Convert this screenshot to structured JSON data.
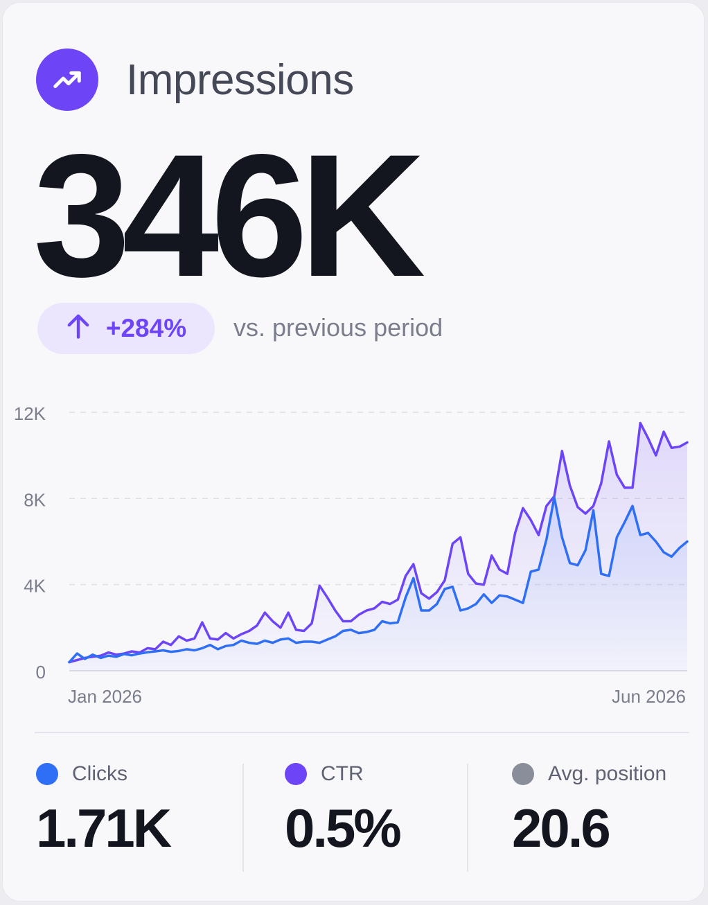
{
  "card": {
    "title": "Impressions",
    "title_icon": "trending-up-icon",
    "value": "346K",
    "change": "+284%",
    "change_icon": "arrow-up-icon",
    "comparison": "vs. previous period",
    "colors": {
      "accent": "#6d45f6",
      "clicks": "#2f6ff5",
      "impressions": "#6d45f6",
      "position": "#8a8d9a"
    }
  },
  "metrics": [
    {
      "label": "Clicks",
      "value": "1.71K",
      "color": "#2f6ff5"
    },
    {
      "label": "CTR",
      "value": "0.5%",
      "color": "#6d45f6"
    },
    {
      "label": "Avg. position",
      "value": "20.6",
      "color": "#8a8d9a"
    }
  ],
  "chart_data": {
    "type": "area",
    "x_start_label": "Jan 2026",
    "x_end_label": "Jun 2026",
    "ylim": [
      0,
      12000
    ],
    "yticks": [
      0,
      4000,
      8000,
      12000
    ],
    "ytick_labels": [
      "0",
      "4K",
      "8K",
      "12K"
    ],
    "grid": true,
    "series": [
      {
        "color": "#6d45f6",
        "values": [
          400,
          500,
          600,
          650,
          700,
          850,
          750,
          800,
          900,
          850,
          1050,
          1000,
          1350,
          1200,
          1600,
          1400,
          1500,
          2250,
          1500,
          1450,
          1750,
          1500,
          1700,
          1850,
          2100,
          2700,
          2300,
          2000,
          2700,
          1900,
          1850,
          2200,
          3950,
          3400,
          2800,
          2300,
          2300,
          2600,
          2800,
          2900,
          3200,
          3100,
          3300,
          4400,
          4950,
          3600,
          3350,
          3650,
          4200,
          5900,
          6200,
          4500,
          4050,
          4000,
          5350,
          4700,
          4500,
          6400,
          7550,
          7000,
          6300,
          7650,
          8100,
          10200,
          8600,
          7600,
          7300,
          7650,
          8700,
          10650,
          9100,
          8500,
          8500,
          11500,
          10800,
          10000,
          11100,
          10350,
          10400,
          10600
        ]
      },
      {
        "color": "#2f6ff5",
        "values": [
          400,
          800,
          550,
          750,
          600,
          700,
          650,
          780,
          720,
          800,
          860,
          900,
          950,
          880,
          920,
          1000,
          950,
          1050,
          1200,
          1000,
          1150,
          1200,
          1400,
          1300,
          1250,
          1400,
          1300,
          1450,
          1500,
          1300,
          1350,
          1350,
          1300,
          1450,
          1600,
          1850,
          1900,
          1750,
          1800,
          1900,
          2300,
          2200,
          2250,
          3400,
          4300,
          2800,
          2800,
          3100,
          3800,
          3900,
          2800,
          2900,
          3100,
          3550,
          3150,
          3500,
          3450,
          3300,
          3150,
          4600,
          4700,
          6100,
          8050,
          6200,
          5000,
          4900,
          5600,
          7450,
          4500,
          4400,
          6200,
          6900,
          7650,
          6300,
          6400,
          6000,
          5500,
          5300,
          5700,
          6000
        ]
      }
    ]
  }
}
